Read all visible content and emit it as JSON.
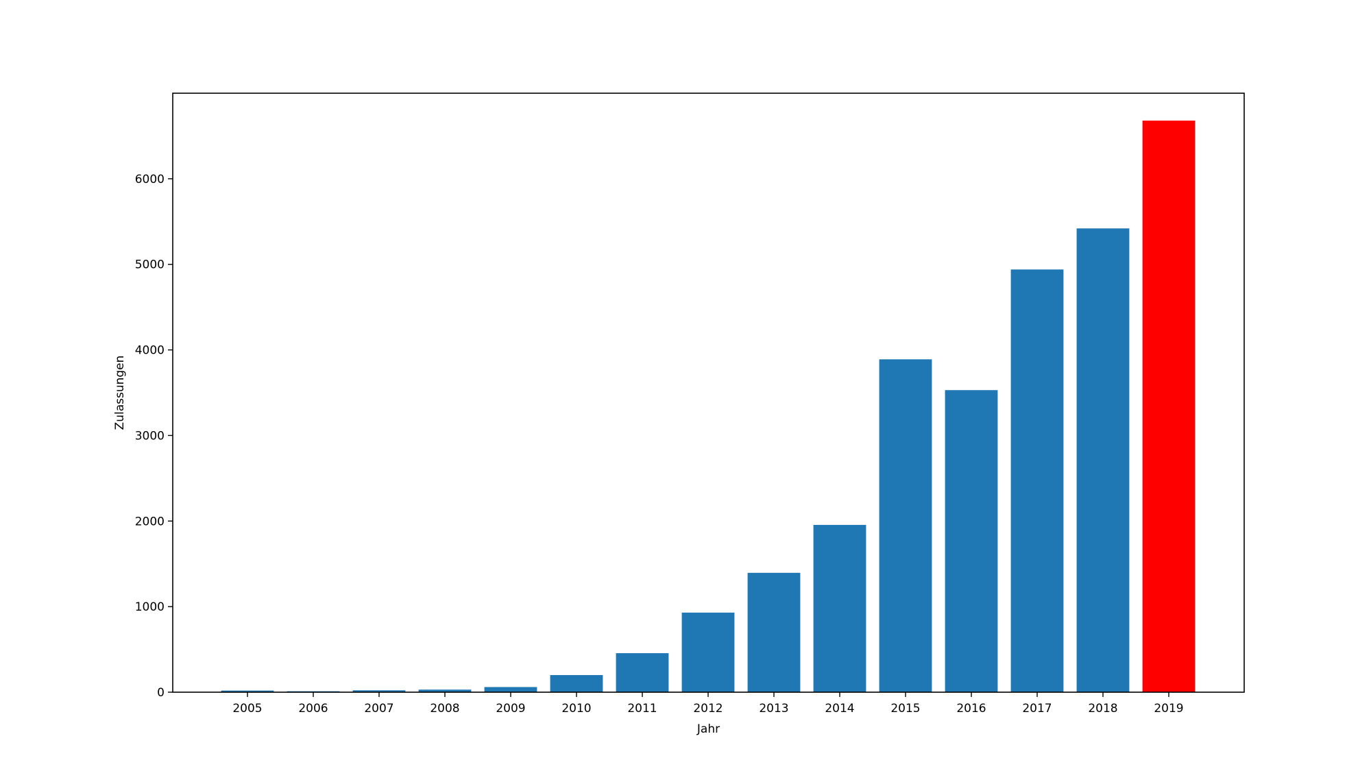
{
  "chart_data": {
    "type": "bar",
    "title": "",
    "xlabel": "Jahr",
    "ylabel": "Zulassungen",
    "categories": [
      "2005",
      "2006",
      "2007",
      "2008",
      "2009",
      "2010",
      "2011",
      "2012",
      "2013",
      "2014",
      "2015",
      "2016",
      "2017",
      "2018",
      "2019"
    ],
    "values": [
      19,
      11,
      22,
      30,
      60,
      200,
      456,
      930,
      1395,
      1955,
      3890,
      3530,
      4940,
      5420,
      6680
    ],
    "colors": [
      "#1f77b4",
      "#1f77b4",
      "#1f77b4",
      "#1f77b4",
      "#1f77b4",
      "#1f77b4",
      "#1f77b4",
      "#1f77b4",
      "#1f77b4",
      "#1f77b4",
      "#1f77b4",
      "#1f77b4",
      "#1f77b4",
      "#1f77b4",
      "#ff0000"
    ],
    "yticks": [
      0,
      1000,
      2000,
      3000,
      4000,
      5000,
      6000
    ],
    "ylim": [
      0,
      7000
    ],
    "grid": false,
    "legend": "none"
  }
}
